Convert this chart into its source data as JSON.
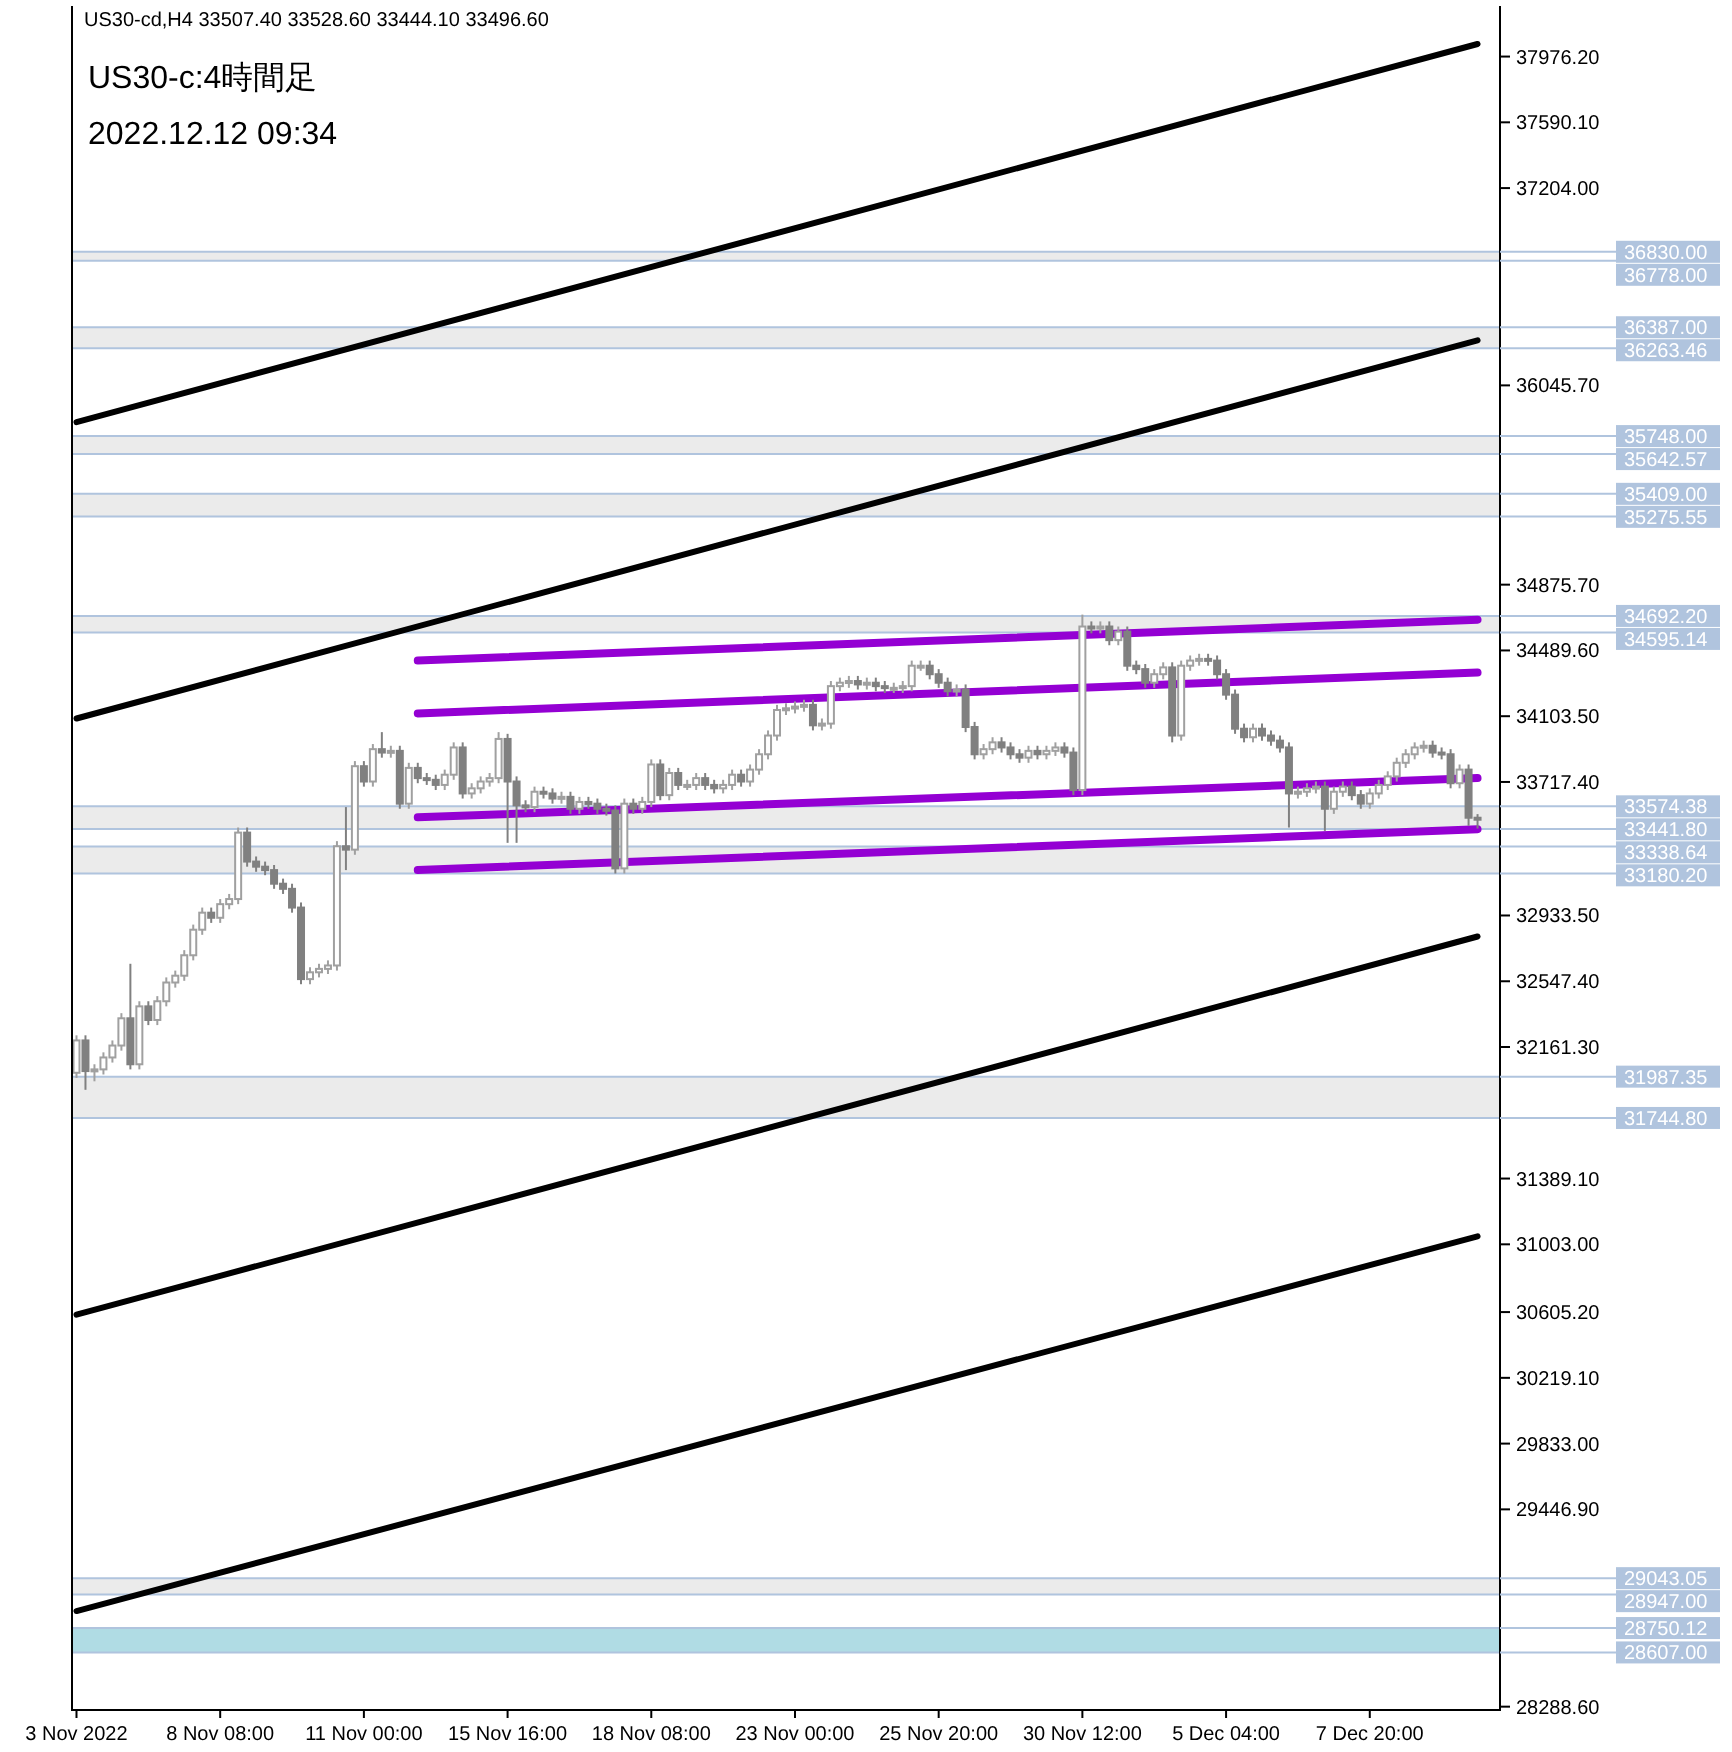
{
  "chart_data": {
    "type": "candlestick",
    "title": "US30-c:4時間足",
    "subtitle": "2022.12.12 09:34",
    "annotations": [
      "US30-cd,H4  33507.40 33528.60 33444.10 33496.60"
    ],
    "categories": [
      "3 Nov 2022",
      null,
      null,
      null,
      null,
      null,
      null,
      null,
      null,
      null,
      null,
      null,
      null,
      null,
      null,
      null,
      "8 Nov 08:00",
      null,
      null,
      null,
      null,
      null,
      null,
      null,
      null,
      null,
      null,
      null,
      null,
      null,
      null,
      null,
      "11 Nov 00:00",
      null,
      null,
      null,
      null,
      null,
      null,
      null,
      null,
      null,
      null,
      null,
      null,
      null,
      null,
      null,
      "15 Nov 16:00",
      null,
      null,
      null,
      null,
      null,
      null,
      null,
      null,
      null,
      null,
      null,
      null,
      null,
      null,
      null,
      "18 Nov 08:00",
      null,
      null,
      null,
      null,
      null,
      null,
      null,
      null,
      null,
      null,
      null,
      null,
      null,
      null,
      null,
      "23 Nov 00:00",
      null,
      null,
      null,
      null,
      null,
      null,
      null,
      null,
      null,
      null,
      null,
      null,
      null,
      null,
      null,
      "25 Nov 20:00",
      null,
      null,
      null,
      null,
      null,
      null,
      null,
      null,
      null,
      null,
      null,
      null,
      null,
      null,
      null,
      "30 Nov 12:00",
      null,
      null,
      null,
      null,
      null,
      null,
      null,
      null,
      null,
      null,
      null,
      null,
      null,
      null,
      null,
      "5 Dec 04:00",
      null,
      null,
      null,
      null,
      null,
      null,
      null,
      null,
      null,
      null,
      null,
      null,
      null,
      null,
      null,
      "7 Dec 20:00",
      null,
      null,
      null,
      null,
      null,
      null,
      null,
      null,
      null,
      null,
      null,
      null
    ],
    "ohlc": [
      [
        32010,
        32230,
        31980,
        32200
      ],
      [
        32200,
        32230,
        31910,
        32020
      ],
      [
        32020,
        32060,
        31960,
        32030
      ],
      [
        32030,
        32130,
        32000,
        32100
      ],
      [
        32100,
        32200,
        32070,
        32170
      ],
      [
        32170,
        32360,
        32140,
        32330
      ],
      [
        32330,
        32650,
        32030,
        32060
      ],
      [
        32060,
        32430,
        32030,
        32400
      ],
      [
        32400,
        32430,
        32290,
        32320
      ],
      [
        32320,
        32460,
        32290,
        32430
      ],
      [
        32430,
        32570,
        32400,
        32540
      ],
      [
        32540,
        32610,
        32510,
        32580
      ],
      [
        32580,
        32730,
        32550,
        32700
      ],
      [
        32700,
        32880,
        32670,
        32850
      ],
      [
        32850,
        32980,
        32820,
        32950
      ],
      [
        32950,
        32980,
        32890,
        32920
      ],
      [
        32920,
        33030,
        32890,
        33000
      ],
      [
        33000,
        33060,
        32970,
        33030
      ],
      [
        33030,
        33450,
        33000,
        33420
      ],
      [
        33420,
        33450,
        33220,
        33250
      ],
      [
        33250,
        33280,
        33190,
        33220
      ],
      [
        33220,
        33250,
        33170,
        33200
      ],
      [
        33200,
        33230,
        33090,
        33120
      ],
      [
        33120,
        33150,
        33060,
        33090
      ],
      [
        33090,
        33120,
        32950,
        32980
      ],
      [
        32980,
        33010,
        32530,
        32560
      ],
      [
        32560,
        32630,
        32530,
        32600
      ],
      [
        32600,
        32650,
        32570,
        32620
      ],
      [
        32620,
        32670,
        32590,
        32640
      ],
      [
        32640,
        33370,
        32610,
        33340
      ],
      [
        33340,
        33570,
        33200,
        33320
      ],
      [
        33320,
        33840,
        33290,
        33810
      ],
      [
        33810,
        33840,
        33690,
        33720
      ],
      [
        33720,
        33940,
        33690,
        33910
      ],
      [
        33910,
        34010,
        33860,
        33890
      ],
      [
        33890,
        33930,
        33860,
        33900
      ],
      [
        33900,
        33930,
        33560,
        33590
      ],
      [
        33590,
        33830,
        33560,
        33800
      ],
      [
        33800,
        33830,
        33710,
        33740
      ],
      [
        33740,
        33770,
        33700,
        33730
      ],
      [
        33730,
        33760,
        33670,
        33700
      ],
      [
        33700,
        33790,
        33670,
        33760
      ],
      [
        33760,
        33950,
        33730,
        33920
      ],
      [
        33920,
        33950,
        33620,
        33650
      ],
      [
        33650,
        33710,
        33620,
        33680
      ],
      [
        33680,
        33750,
        33650,
        33720
      ],
      [
        33720,
        33770,
        33690,
        33740
      ],
      [
        33740,
        34010,
        33710,
        33970
      ],
      [
        33970,
        34000,
        33360,
        33720
      ],
      [
        33720,
        33750,
        33360,
        33580
      ],
      [
        33580,
        33610,
        33540,
        33570
      ],
      [
        33570,
        33690,
        33540,
        33660
      ],
      [
        33660,
        33690,
        33620,
        33650
      ],
      [
        33650,
        33680,
        33590,
        33620
      ],
      [
        33620,
        33660,
        33590,
        33630
      ],
      [
        33630,
        33660,
        33530,
        33560
      ],
      [
        33560,
        33630,
        33530,
        33600
      ],
      [
        33600,
        33630,
        33560,
        33590
      ],
      [
        33590,
        33620,
        33530,
        33560
      ],
      [
        33560,
        33590,
        33520,
        33550
      ],
      [
        33550,
        33580,
        33180,
        33210
      ],
      [
        33210,
        33620,
        33180,
        33590
      ],
      [
        33590,
        33620,
        33530,
        33560
      ],
      [
        33560,
        33630,
        33530,
        33600
      ],
      [
        33600,
        33850,
        33570,
        33820
      ],
      [
        33820,
        33850,
        33610,
        33640
      ],
      [
        33640,
        33800,
        33610,
        33770
      ],
      [
        33770,
        33800,
        33670,
        33700
      ],
      [
        33700,
        33730,
        33670,
        33700
      ],
      [
        33700,
        33770,
        33670,
        33740
      ],
      [
        33740,
        33770,
        33670,
        33700
      ],
      [
        33700,
        33730,
        33650,
        33680
      ],
      [
        33680,
        33730,
        33650,
        33700
      ],
      [
        33700,
        33790,
        33670,
        33760
      ],
      [
        33760,
        33790,
        33690,
        33720
      ],
      [
        33720,
        33820,
        33690,
        33790
      ],
      [
        33790,
        33910,
        33760,
        33880
      ],
      [
        33880,
        34020,
        33850,
        33990
      ],
      [
        33990,
        34170,
        33960,
        34140
      ],
      [
        34140,
        34180,
        34110,
        34150
      ],
      [
        34150,
        34190,
        34120,
        34160
      ],
      [
        34160,
        34200,
        34130,
        34170
      ],
      [
        34170,
        34200,
        34020,
        34050
      ],
      [
        34050,
        34090,
        34020,
        34060
      ],
      [
        34060,
        34310,
        34030,
        34280
      ],
      [
        34280,
        34330,
        34250,
        34300
      ],
      [
        34300,
        34340,
        34270,
        34310
      ],
      [
        34310,
        34340,
        34260,
        34290
      ],
      [
        34290,
        34330,
        34260,
        34300
      ],
      [
        34300,
        34330,
        34250,
        34280
      ],
      [
        34280,
        34310,
        34240,
        34270
      ],
      [
        34270,
        34300,
        34240,
        34270
      ],
      [
        34270,
        34310,
        34240,
        34280
      ],
      [
        34280,
        34430,
        34250,
        34400
      ],
      [
        34400,
        34430,
        34370,
        34400
      ],
      [
        34400,
        34430,
        34320,
        34350
      ],
      [
        34350,
        34380,
        34270,
        34300
      ],
      [
        34300,
        34330,
        34220,
        34250
      ],
      [
        34250,
        34290,
        34220,
        34260
      ],
      [
        34260,
        34290,
        34010,
        34040
      ],
      [
        34040,
        34070,
        33850,
        33880
      ],
      [
        33880,
        33940,
        33850,
        33910
      ],
      [
        33910,
        33980,
        33880,
        33950
      ],
      [
        33950,
        33980,
        33890,
        33920
      ],
      [
        33920,
        33950,
        33850,
        33880
      ],
      [
        33880,
        33910,
        33830,
        33860
      ],
      [
        33860,
        33930,
        33830,
        33900
      ],
      [
        33900,
        33930,
        33850,
        33880
      ],
      [
        33880,
        33930,
        33850,
        33900
      ],
      [
        33900,
        33950,
        33870,
        33920
      ],
      [
        33920,
        33950,
        33860,
        33890
      ],
      [
        33890,
        33920,
        33640,
        33670
      ],
      [
        33670,
        34700,
        33640,
        34630
      ],
      [
        34630,
        34660,
        34590,
        34620
      ],
      [
        34620,
        34660,
        34590,
        34630
      ],
      [
        34630,
        34660,
        34520,
        34550
      ],
      [
        34550,
        34630,
        34520,
        34600
      ],
      [
        34600,
        34630,
        34370,
        34400
      ],
      [
        34400,
        34430,
        34350,
        34380
      ],
      [
        34380,
        34410,
        34270,
        34300
      ],
      [
        34300,
        34380,
        34270,
        34350
      ],
      [
        34350,
        34420,
        34320,
        34390
      ],
      [
        34390,
        34420,
        33950,
        33990
      ],
      [
        33990,
        34430,
        33960,
        34400
      ],
      [
        34400,
        34460,
        34370,
        34430
      ],
      [
        34430,
        34470,
        34400,
        34440
      ],
      [
        34440,
        34470,
        34400,
        34430
      ],
      [
        34430,
        34460,
        34320,
        34350
      ],
      [
        34350,
        34380,
        34200,
        34230
      ],
      [
        34230,
        34260,
        34000,
        34030
      ],
      [
        34030,
        34060,
        33950,
        33980
      ],
      [
        33980,
        34060,
        33950,
        34030
      ],
      [
        34030,
        34060,
        33960,
        33990
      ],
      [
        33990,
        34020,
        33930,
        33960
      ],
      [
        33960,
        33990,
        33890,
        33920
      ],
      [
        33920,
        33950,
        33450,
        33650
      ],
      [
        33650,
        33690,
        33620,
        33660
      ],
      [
        33660,
        33710,
        33630,
        33680
      ],
      [
        33680,
        33720,
        33650,
        33690
      ],
      [
        33690,
        33720,
        33430,
        33560
      ],
      [
        33560,
        33690,
        33530,
        33660
      ],
      [
        33660,
        33720,
        33630,
        33690
      ],
      [
        33690,
        33720,
        33610,
        33640
      ],
      [
        33640,
        33670,
        33560,
        33590
      ],
      [
        33590,
        33680,
        33560,
        33650
      ],
      [
        33650,
        33730,
        33620,
        33700
      ],
      [
        33700,
        33780,
        33670,
        33750
      ],
      [
        33750,
        33860,
        33720,
        33830
      ],
      [
        33830,
        33910,
        33800,
        33880
      ],
      [
        33880,
        33950,
        33850,
        33920
      ],
      [
        33920,
        33960,
        33890,
        33930
      ],
      [
        33930,
        33960,
        33860,
        33890
      ],
      [
        33890,
        33920,
        33850,
        33880
      ],
      [
        33880,
        33910,
        33680,
        33710
      ],
      [
        33710,
        33820,
        33680,
        33790
      ],
      [
        33790,
        33820,
        33460,
        33507.4
      ],
      [
        33507.4,
        33528.6,
        33444.1,
        33496.6
      ]
    ],
    "series": [
      {
        "type": "line",
        "color": "#000000",
        "values": [
          35830,
          null,
          null,
          null,
          null,
          null,
          null,
          null,
          null,
          null,
          null,
          null,
          null,
          null,
          null,
          null,
          null,
          null,
          null,
          null,
          null,
          null,
          null,
          null,
          null,
          null,
          null,
          null,
          null,
          null,
          null,
          null,
          null,
          null,
          null,
          null,
          null,
          null,
          null,
          null,
          null,
          null,
          null,
          null,
          null,
          null,
          null,
          null,
          null,
          null,
          null,
          null,
          null,
          null,
          null,
          null,
          null,
          null,
          null,
          null,
          null,
          null,
          null,
          null,
          null,
          null,
          null,
          null,
          null,
          null,
          null,
          null,
          null,
          null,
          null,
          null,
          null,
          null,
          null,
          null,
          null,
          null,
          null,
          null,
          null,
          null,
          null,
          null,
          null,
          null,
          null,
          null,
          null,
          null,
          null,
          null,
          null,
          null,
          null,
          null,
          null,
          null,
          null,
          null,
          null,
          null,
          null,
          null,
          null,
          null,
          null,
          null,
          null,
          null,
          null,
          null,
          null,
          null,
          null,
          null,
          null,
          null,
          null,
          null,
          null,
          null,
          null,
          null,
          null,
          null,
          null,
          null,
          null,
          null,
          null,
          null,
          null,
          null,
          null,
          null,
          null,
          null,
          null,
          null,
          null,
          null,
          null,
          null,
          null,
          null,
          null,
          null,
          null,
          null,
          null,
          null,
          38050
        ]
      },
      {
        "type": "line",
        "color": "#000000",
        "values": [
          34090,
          null,
          null,
          null,
          null,
          null,
          null,
          null,
          null,
          null,
          null,
          null,
          null,
          null,
          null,
          null,
          null,
          null,
          null,
          null,
          null,
          null,
          null,
          null,
          null,
          null,
          null,
          null,
          null,
          null,
          null,
          null,
          null,
          null,
          null,
          null,
          null,
          null,
          null,
          null,
          null,
          null,
          null,
          null,
          null,
          null,
          null,
          null,
          null,
          null,
          null,
          null,
          null,
          null,
          null,
          null,
          null,
          null,
          null,
          null,
          null,
          null,
          null,
          null,
          null,
          null,
          null,
          null,
          null,
          null,
          null,
          null,
          null,
          null,
          null,
          null,
          null,
          null,
          null,
          null,
          null,
          null,
          null,
          null,
          null,
          null,
          null,
          null,
          null,
          null,
          null,
          null,
          null,
          null,
          null,
          null,
          null,
          null,
          null,
          null,
          null,
          null,
          null,
          null,
          null,
          null,
          null,
          null,
          null,
          null,
          null,
          null,
          null,
          null,
          null,
          null,
          null,
          null,
          null,
          null,
          null,
          null,
          null,
          null,
          null,
          null,
          null,
          null,
          null,
          null,
          null,
          null,
          null,
          null,
          null,
          null,
          null,
          null,
          null,
          null,
          null,
          null,
          null,
          null,
          null,
          null,
          null,
          null,
          null,
          null,
          null,
          null,
          null,
          null,
          null,
          null,
          36310
        ]
      },
      {
        "type": "line",
        "color": "#000000",
        "values": [
          30590,
          null,
          null,
          null,
          null,
          null,
          null,
          null,
          null,
          null,
          null,
          null,
          null,
          null,
          null,
          null,
          null,
          null,
          null,
          null,
          null,
          null,
          null,
          null,
          null,
          null,
          null,
          null,
          null,
          null,
          null,
          null,
          null,
          null,
          null,
          null,
          null,
          null,
          null,
          null,
          null,
          null,
          null,
          null,
          null,
          null,
          null,
          null,
          null,
          null,
          null,
          null,
          null,
          null,
          null,
          null,
          null,
          null,
          null,
          null,
          null,
          null,
          null,
          null,
          null,
          null,
          null,
          null,
          null,
          null,
          null,
          null,
          null,
          null,
          null,
          null,
          null,
          null,
          null,
          null,
          null,
          null,
          null,
          null,
          null,
          null,
          null,
          null,
          null,
          null,
          null,
          null,
          null,
          null,
          null,
          null,
          null,
          null,
          null,
          null,
          null,
          null,
          null,
          null,
          null,
          null,
          null,
          null,
          null,
          null,
          null,
          null,
          null,
          null,
          null,
          null,
          null,
          null,
          null,
          null,
          null,
          null,
          null,
          null,
          null,
          null,
          null,
          null,
          null,
          null,
          null,
          null,
          null,
          null,
          null,
          null,
          null,
          null,
          null,
          null,
          null,
          null,
          null,
          null,
          null,
          null,
          null,
          null,
          null,
          null,
          null,
          null,
          null,
          null,
          null,
          null,
          32810
        ]
      },
      {
        "type": "line",
        "color": "#000000",
        "values": [
          28850,
          null,
          null,
          null,
          null,
          null,
          null,
          null,
          null,
          null,
          null,
          null,
          null,
          null,
          null,
          null,
          null,
          null,
          null,
          null,
          null,
          null,
          null,
          null,
          null,
          null,
          null,
          null,
          null,
          null,
          null,
          null,
          null,
          null,
          null,
          null,
          null,
          null,
          null,
          null,
          null,
          null,
          null,
          null,
          null,
          null,
          null,
          null,
          null,
          null,
          null,
          null,
          null,
          null,
          null,
          null,
          null,
          null,
          null,
          null,
          null,
          null,
          null,
          null,
          null,
          null,
          null,
          null,
          null,
          null,
          null,
          null,
          null,
          null,
          null,
          null,
          null,
          null,
          null,
          null,
          null,
          null,
          null,
          null,
          null,
          null,
          null,
          null,
          null,
          null,
          null,
          null,
          null,
          null,
          null,
          null,
          null,
          null,
          null,
          null,
          null,
          null,
          null,
          null,
          null,
          null,
          null,
          null,
          null,
          null,
          null,
          null,
          null,
          null,
          null,
          null,
          null,
          null,
          null,
          null,
          null,
          null,
          null,
          null,
          null,
          null,
          null,
          null,
          null,
          null,
          null,
          null,
          null,
          null,
          null,
          null,
          null,
          null,
          null,
          null,
          null,
          null,
          null,
          null,
          null,
          null,
          null,
          null,
          null,
          null,
          null,
          null,
          null,
          null,
          null,
          null,
          31050
        ]
      },
      {
        "type": "line",
        "color": "#9400d3",
        "values": [
          null,
          null,
          null,
          null,
          null,
          null,
          null,
          null,
          null,
          null,
          null,
          null,
          null,
          null,
          null,
          null,
          null,
          null,
          null,
          null,
          null,
          null,
          null,
          null,
          null,
          null,
          null,
          null,
          null,
          null,
          null,
          null,
          null,
          null,
          null,
          null,
          null,
          null,
          34430,
          null,
          null,
          null,
          null,
          null,
          null,
          null,
          null,
          null,
          null,
          null,
          null,
          null,
          null,
          null,
          null,
          null,
          null,
          null,
          null,
          null,
          null,
          null,
          null,
          null,
          null,
          null,
          null,
          null,
          null,
          null,
          null,
          null,
          null,
          null,
          null,
          null,
          null,
          null,
          null,
          null,
          null,
          null,
          null,
          null,
          null,
          null,
          null,
          null,
          null,
          null,
          null,
          null,
          null,
          null,
          null,
          null,
          null,
          null,
          null,
          null,
          null,
          null,
          null,
          null,
          null,
          null,
          null,
          null,
          null,
          null,
          null,
          null,
          null,
          null,
          null,
          null,
          null,
          null,
          null,
          null,
          null,
          null,
          null,
          null,
          null,
          null,
          null,
          null,
          null,
          null,
          null,
          null,
          null,
          null,
          null,
          null,
          null,
          null,
          null,
          null,
          null,
          null,
          null,
          null,
          null,
          null,
          null,
          null,
          null,
          null,
          null,
          null,
          null,
          null,
          null,
          null,
          34670
        ]
      },
      {
        "type": "line",
        "color": "#9400d3",
        "values": [
          null,
          null,
          null,
          null,
          null,
          null,
          null,
          null,
          null,
          null,
          null,
          null,
          null,
          null,
          null,
          null,
          null,
          null,
          null,
          null,
          null,
          null,
          null,
          null,
          null,
          null,
          null,
          null,
          null,
          null,
          null,
          null,
          null,
          null,
          null,
          null,
          null,
          null,
          34120,
          null,
          null,
          null,
          null,
          null,
          null,
          null,
          null,
          null,
          null,
          null,
          null,
          null,
          null,
          null,
          null,
          null,
          null,
          null,
          null,
          null,
          null,
          null,
          null,
          null,
          null,
          null,
          null,
          null,
          null,
          null,
          null,
          null,
          null,
          null,
          null,
          null,
          null,
          null,
          null,
          null,
          null,
          null,
          null,
          null,
          null,
          null,
          null,
          null,
          null,
          null,
          null,
          null,
          null,
          null,
          null,
          null,
          null,
          null,
          null,
          null,
          null,
          null,
          null,
          null,
          null,
          null,
          null,
          null,
          null,
          null,
          null,
          null,
          null,
          null,
          null,
          null,
          null,
          null,
          null,
          null,
          null,
          null,
          null,
          null,
          null,
          null,
          null,
          null,
          null,
          null,
          null,
          null,
          null,
          null,
          null,
          null,
          null,
          null,
          null,
          null,
          null,
          null,
          null,
          null,
          null,
          null,
          null,
          null,
          null,
          null,
          null,
          null,
          null,
          null,
          null,
          null,
          34360
        ]
      },
      {
        "type": "line",
        "color": "#9400d3",
        "values": [
          null,
          null,
          null,
          null,
          null,
          null,
          null,
          null,
          null,
          null,
          null,
          null,
          null,
          null,
          null,
          null,
          null,
          null,
          null,
          null,
          null,
          null,
          null,
          null,
          null,
          null,
          null,
          null,
          null,
          null,
          null,
          null,
          null,
          null,
          null,
          null,
          null,
          null,
          33510,
          null,
          null,
          null,
          null,
          null,
          null,
          null,
          null,
          null,
          null,
          null,
          null,
          null,
          null,
          null,
          null,
          null,
          null,
          null,
          null,
          null,
          null,
          null,
          null,
          null,
          null,
          null,
          null,
          null,
          null,
          null,
          null,
          null,
          null,
          null,
          null,
          null,
          null,
          null,
          null,
          null,
          null,
          null,
          null,
          null,
          null,
          null,
          null,
          null,
          null,
          null,
          null,
          null,
          null,
          null,
          null,
          null,
          null,
          null,
          null,
          null,
          null,
          null,
          null,
          null,
          null,
          null,
          null,
          null,
          null,
          null,
          null,
          null,
          null,
          null,
          null,
          null,
          null,
          null,
          null,
          null,
          null,
          null,
          null,
          null,
          null,
          null,
          null,
          null,
          null,
          null,
          null,
          null,
          null,
          null,
          null,
          null,
          null,
          null,
          null,
          null,
          null,
          null,
          null,
          null,
          null,
          null,
          null,
          null,
          null,
          null,
          null,
          null,
          null,
          null,
          null,
          null,
          33740
        ]
      },
      {
        "type": "line",
        "color": "#9400d3",
        "values": [
          null,
          null,
          null,
          null,
          null,
          null,
          null,
          null,
          null,
          null,
          null,
          null,
          null,
          null,
          null,
          null,
          null,
          null,
          null,
          null,
          null,
          null,
          null,
          null,
          null,
          null,
          null,
          null,
          null,
          null,
          null,
          null,
          null,
          null,
          null,
          null,
          null,
          null,
          33200,
          null,
          null,
          null,
          null,
          null,
          null,
          null,
          null,
          null,
          null,
          null,
          null,
          null,
          null,
          null,
          null,
          null,
          null,
          null,
          null,
          null,
          null,
          null,
          null,
          null,
          null,
          null,
          null,
          null,
          null,
          null,
          null,
          null,
          null,
          null,
          null,
          null,
          null,
          null,
          null,
          null,
          null,
          null,
          null,
          null,
          null,
          null,
          null,
          null,
          null,
          null,
          null,
          null,
          null,
          null,
          null,
          null,
          null,
          null,
          null,
          null,
          null,
          null,
          null,
          null,
          null,
          null,
          null,
          null,
          null,
          null,
          null,
          null,
          null,
          null,
          null,
          null,
          null,
          null,
          null,
          null,
          null,
          null,
          null,
          null,
          null,
          null,
          null,
          null,
          null,
          null,
          null,
          null,
          null,
          null,
          null,
          null,
          null,
          null,
          null,
          null,
          null,
          null,
          null,
          null,
          null,
          null,
          null,
          null,
          null,
          null,
          null,
          null,
          null,
          null,
          null,
          null,
          33440
        ]
      }
    ],
    "ylim": [
      28269,
      38273
    ],
    "yticks": [
      {
        "value": 37976.2,
        "label": "37976.20"
      },
      {
        "value": 37590.1,
        "label": "37590.10"
      },
      {
        "value": 37204,
        "label": "37204.00"
      },
      {
        "value": 36045.7,
        "label": "36045.70"
      },
      {
        "value": 34875.7,
        "label": "34875.70"
      },
      {
        "value": 34489.6,
        "label": "34489.60"
      },
      {
        "value": 34103.5,
        "label": "34103.50"
      },
      {
        "value": 33717.4,
        "label": "33717.40"
      },
      {
        "value": 32933.5,
        "label": "32933.50"
      },
      {
        "value": 32547.4,
        "label": "32547.40"
      },
      {
        "value": 32161.3,
        "label": "32161.30"
      },
      {
        "value": 31389.1,
        "label": "31389.10"
      },
      {
        "value": 31003,
        "label": "31003.00"
      },
      {
        "value": 30605.2,
        "label": "30605.20"
      },
      {
        "value": 30219.1,
        "label": "30219.10"
      },
      {
        "value": 29833,
        "label": "29833.00"
      },
      {
        "value": 29446.9,
        "label": "29446.90"
      },
      {
        "value": 28288.6,
        "label": "28288.60"
      }
    ],
    "ref_lines": [
      {
        "axis": "y",
        "value": 36830,
        "label": "36830.00",
        "color": "#b0c4de"
      },
      {
        "axis": "y",
        "value": 36778,
        "label": "36778.00",
        "color": "#b0c4de"
      },
      {
        "axis": "y",
        "value": 36387,
        "label": "36387.00",
        "color": "#b0c4de"
      },
      {
        "axis": "y",
        "value": 36263.46,
        "label": "36263.46",
        "color": "#b0c4de"
      },
      {
        "axis": "y",
        "value": 35748,
        "label": "35748.00",
        "color": "#b0c4de"
      },
      {
        "axis": "y",
        "value": 35642.57,
        "label": "35642.57",
        "color": "#b0c4de"
      },
      {
        "axis": "y",
        "value": 35409,
        "label": "35409.00",
        "color": "#b0c4de"
      },
      {
        "axis": "y",
        "value": 35275.55,
        "label": "35275.55",
        "color": "#b0c4de"
      },
      {
        "axis": "y",
        "value": 34692.2,
        "label": "34692.20",
        "color": "#b0c4de"
      },
      {
        "axis": "y",
        "value": 34595.14,
        "label": "34595.14",
        "color": "#b0c4de"
      },
      {
        "axis": "y",
        "value": 33574.38,
        "label": "33574.38",
        "color": "#b0c4de"
      },
      {
        "axis": "y",
        "value": 33441.8,
        "label": "33441.80",
        "color": "#b0c4de"
      },
      {
        "axis": "y",
        "value": 33338.64,
        "label": "33338.64",
        "color": "#b0c4de"
      },
      {
        "axis": "y",
        "value": 33180.2,
        "label": "33180.20",
        "color": "#b0c4de"
      },
      {
        "axis": "y",
        "value": 31987.35,
        "label": "31987.35",
        "color": "#b0c4de"
      },
      {
        "axis": "y",
        "value": 31744.8,
        "label": "31744.80",
        "color": "#b0c4de"
      },
      {
        "axis": "y",
        "value": 29043.05,
        "label": "29043.05",
        "color": "#b0c4de"
      },
      {
        "axis": "y",
        "value": 28947,
        "label": "28947.00",
        "color": "#b0c4de"
      },
      {
        "axis": "y",
        "value": 28750.12,
        "label": "28750.12",
        "color": "#b0c4de"
      },
      {
        "axis": "y",
        "value": 28607,
        "label": "28607.00",
        "color": "#b0c4de"
      }
    ],
    "bands": [
      {
        "axis": "y",
        "from": 36778,
        "to": 36830,
        "color": "#ebebeb"
      },
      {
        "axis": "y",
        "from": 36263.46,
        "to": 36387,
        "color": "#ebebeb"
      },
      {
        "axis": "y",
        "from": 35642.57,
        "to": 35748,
        "color": "#ebebeb"
      },
      {
        "axis": "y",
        "from": 35275.55,
        "to": 35409,
        "color": "#ebebeb"
      },
      {
        "axis": "y",
        "from": 34595.14,
        "to": 34692.2,
        "color": "#ebebeb"
      },
      {
        "axis": "y",
        "from": 33441.8,
        "to": 33574.38,
        "color": "#ebebeb"
      },
      {
        "axis": "y",
        "from": 33180.2,
        "to": 33338.64,
        "color": "#ebebeb"
      },
      {
        "axis": "y",
        "from": 31744.8,
        "to": 31987.35,
        "color": "#ebebeb"
      },
      {
        "axis": "y",
        "from": 28947,
        "to": 29043.05,
        "color": "#ebebeb"
      },
      {
        "axis": "y",
        "from": 28607,
        "to": 28750.12,
        "color": "#b0dce4"
      }
    ]
  }
}
